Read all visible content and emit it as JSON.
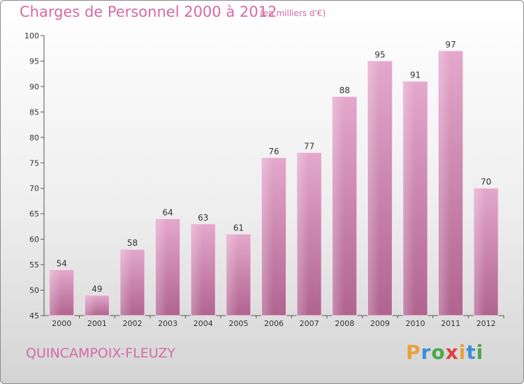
{
  "header": {
    "title": "Charges de Personnel 2000 à 2012",
    "unit": "(en milliers d'€)"
  },
  "footer": {
    "city": "QUINCAMPOIX-FLEUZY",
    "logo": "Proxiti"
  },
  "colors": {
    "title": "#d66aa6",
    "bar_top": "#e4a8cc",
    "bar_bottom": "#b0648f",
    "logo_letters": [
      "#e8a13a",
      "#3a8fd8",
      "#4aa84a",
      "#e04040",
      "#e8a13a",
      "#3a8fd8",
      "#4aa84a"
    ]
  },
  "chart_data": {
    "type": "bar",
    "title": "Charges de Personnel 2000 à 2012",
    "xlabel": "",
    "ylabel": "",
    "categories": [
      "2000",
      "2001",
      "2002",
      "2003",
      "2004",
      "2005",
      "2006",
      "2007",
      "2008",
      "2009",
      "2010",
      "2011",
      "2012"
    ],
    "values": [
      54,
      49,
      58,
      64,
      63,
      61,
      76,
      77,
      88,
      95,
      91,
      97,
      70
    ],
    "ylim": [
      45,
      100
    ],
    "yticks": [
      45,
      50,
      55,
      60,
      65,
      70,
      75,
      80,
      85,
      90,
      95,
      100
    ],
    "grid": false,
    "data_labels": true
  }
}
